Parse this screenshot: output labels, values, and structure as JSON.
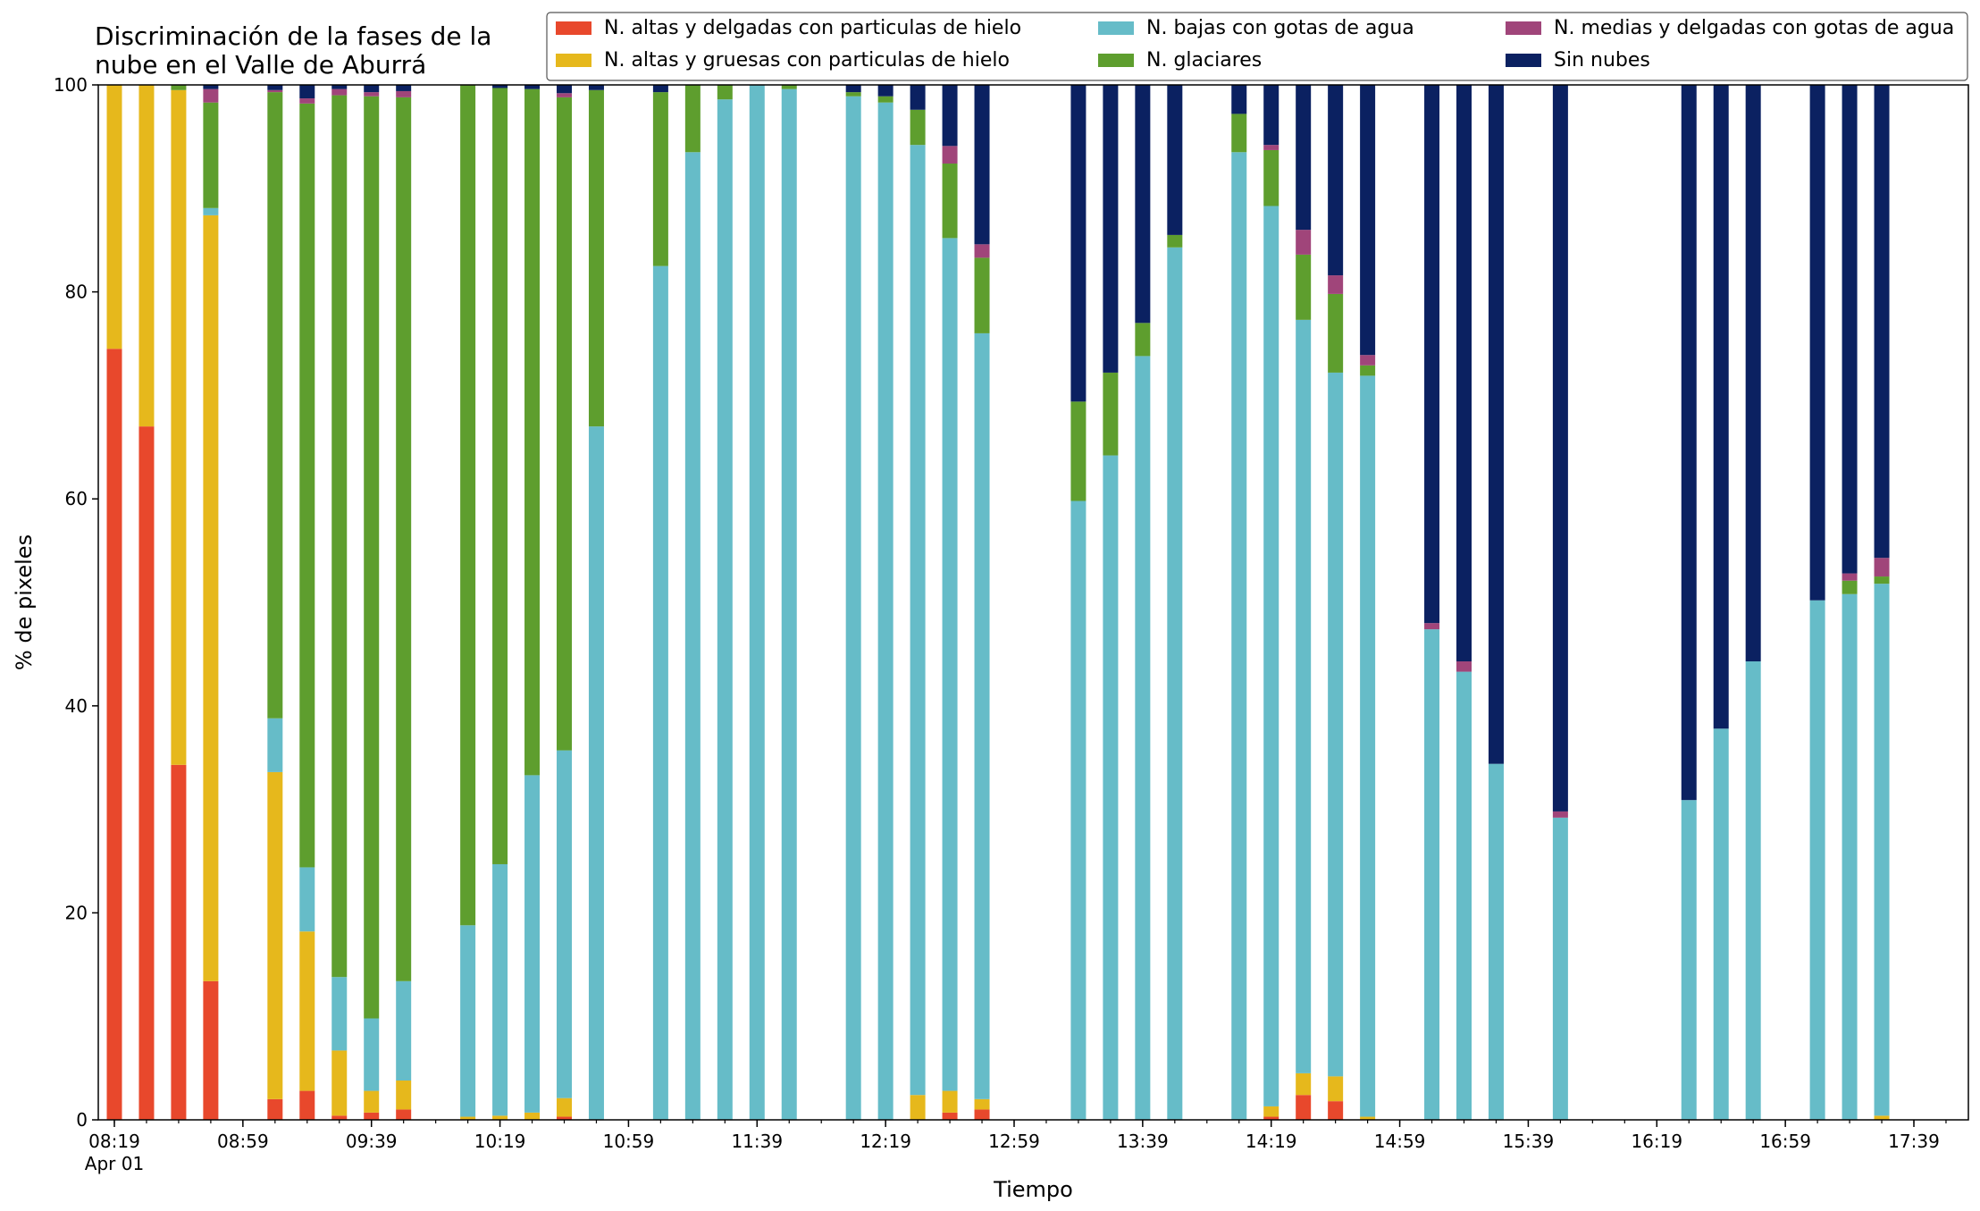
{
  "chart_data": {
    "type": "bar",
    "stacked": true,
    "title": "Discriminación de la fases de la\nnube en el Valle de Aburrá",
    "xlabel": "Tiempo",
    "ylabel": "% de pixeles",
    "ylim": [
      0,
      100
    ],
    "yticks": [
      0,
      20,
      40,
      60,
      80,
      100
    ],
    "xlim_slots": [
      0,
      58
    ],
    "xticks": [
      {
        "slot": 0,
        "label": "08:19",
        "sublabel": "Apr 01"
      },
      {
        "slot": 4,
        "label": "08:59"
      },
      {
        "slot": 8,
        "label": "09:39"
      },
      {
        "slot": 12,
        "label": "10:19"
      },
      {
        "slot": 16,
        "label": "10:59"
      },
      {
        "slot": 20,
        "label": "11:39"
      },
      {
        "slot": 24,
        "label": "12:19"
      },
      {
        "slot": 28,
        "label": "12:59"
      },
      {
        "slot": 32,
        "label": "13:39"
      },
      {
        "slot": 36,
        "label": "14:19"
      },
      {
        "slot": 40,
        "label": "14:59"
      },
      {
        "slot": 44,
        "label": "15:39"
      },
      {
        "slot": 48,
        "label": "16:19"
      },
      {
        "slot": 52,
        "label": "16:59"
      },
      {
        "slot": 56,
        "label": "17:39"
      }
    ],
    "grid": false,
    "legend_position": "top-right",
    "series": [
      {
        "key": "altas_delgadas",
        "name": "N. altas y delgadas con particulas de hielo",
        "color": "#e8482c"
      },
      {
        "key": "altas_gruesas",
        "name": "N. altas y gruesas con particulas de hielo",
        "color": "#e6b81c"
      },
      {
        "key": "bajas_agua",
        "name": "N. bajas con gotas de agua",
        "color": "#66bcc8"
      },
      {
        "key": "glaciares",
        "name": "N. glaciares",
        "color": "#5e9e2e"
      },
      {
        "key": "medias_agua",
        "name": "N. medias y delgadas con gotas de agua",
        "color": "#a0457a"
      },
      {
        "key": "sin_nubes",
        "name": "Sin nubes",
        "color": "#0b2161"
      }
    ],
    "legend_order": [
      "altas_delgadas",
      "altas_gruesas",
      "bajas_agua",
      "glaciares",
      "medias_agua",
      "sin_nubes"
    ],
    "bars": [
      {
        "slot": 0,
        "values": [
          74.5,
          25.5,
          0,
          0,
          0,
          0
        ]
      },
      {
        "slot": 1,
        "values": [
          67,
          33,
          0,
          0,
          0,
          0
        ]
      },
      {
        "slot": 2,
        "values": [
          34.3,
          65.2,
          0,
          0.5,
          0,
          0
        ]
      },
      {
        "slot": 3,
        "values": [
          13.4,
          74,
          0.7,
          10.2,
          1.3,
          0.4
        ]
      },
      {
        "slot": 5,
        "values": [
          2,
          31.6,
          5.2,
          60.5,
          0.2,
          0.5
        ]
      },
      {
        "slot": 6,
        "values": [
          2.8,
          15.4,
          6.2,
          73.8,
          0.5,
          1.3
        ]
      },
      {
        "slot": 7,
        "values": [
          0.4,
          6.3,
          7.1,
          85.2,
          0.6,
          0.4
        ]
      },
      {
        "slot": 8,
        "values": [
          0.7,
          2.1,
          7,
          89.1,
          0.4,
          0.7
        ]
      },
      {
        "slot": 9,
        "values": [
          1,
          2.8,
          9.6,
          85.4,
          0.6,
          0.6
        ]
      },
      {
        "slot": 11,
        "values": [
          0,
          0.3,
          18.5,
          81.2,
          0,
          0
        ]
      },
      {
        "slot": 12,
        "values": [
          0,
          0.4,
          24.3,
          75,
          0,
          0.3
        ]
      },
      {
        "slot": 13,
        "values": [
          0,
          0.7,
          32.6,
          66.3,
          0,
          0.4
        ]
      },
      {
        "slot": 14,
        "values": [
          0.3,
          1.8,
          33.6,
          63.1,
          0.4,
          0.8
        ]
      },
      {
        "slot": 15,
        "values": [
          0,
          0,
          67,
          32.5,
          0,
          0.5
        ]
      },
      {
        "slot": 17,
        "values": [
          0,
          0,
          82.5,
          16.8,
          0,
          0.7
        ]
      },
      {
        "slot": 18,
        "values": [
          0,
          0,
          93.5,
          6.5,
          0,
          0
        ]
      },
      {
        "slot": 19,
        "values": [
          0,
          0,
          98.6,
          1.4,
          0,
          0
        ]
      },
      {
        "slot": 20,
        "values": [
          0,
          0,
          100,
          0,
          0,
          0
        ]
      },
      {
        "slot": 21,
        "values": [
          0,
          0,
          99.6,
          0.4,
          0,
          0
        ]
      },
      {
        "slot": 23,
        "values": [
          0,
          0,
          98.9,
          0.4,
          0,
          0.7
        ]
      },
      {
        "slot": 24,
        "values": [
          0,
          0,
          98.3,
          0.6,
          0,
          1.1
        ]
      },
      {
        "slot": 25,
        "values": [
          0,
          2.4,
          91.8,
          3.4,
          0,
          2.4
        ]
      },
      {
        "slot": 26,
        "values": [
          0.7,
          2.1,
          82.4,
          7.2,
          1.7,
          5.9
        ]
      },
      {
        "slot": 27,
        "values": [
          1,
          1,
          74,
          7.3,
          1.3,
          15.4
        ]
      },
      {
        "slot": 30,
        "values": [
          0,
          0,
          59.8,
          9.6,
          0,
          30.6
        ]
      },
      {
        "slot": 31,
        "values": [
          0,
          0,
          64.2,
          8,
          0,
          27.8
        ]
      },
      {
        "slot": 32,
        "values": [
          0,
          0,
          73.8,
          3.2,
          0,
          23
        ]
      },
      {
        "slot": 33,
        "values": [
          0,
          0,
          84.3,
          1.2,
          0,
          14.5
        ]
      },
      {
        "slot": 35,
        "values": [
          0,
          0,
          93.5,
          3.7,
          0,
          2.8
        ]
      },
      {
        "slot": 36,
        "values": [
          0.3,
          1,
          87,
          5.4,
          0.5,
          5.8
        ]
      },
      {
        "slot": 37,
        "values": [
          2.4,
          2.1,
          72.8,
          6.3,
          2.4,
          14
        ]
      },
      {
        "slot": 38,
        "values": [
          1.8,
          2.4,
          68,
          7.6,
          1.8,
          18.4
        ]
      },
      {
        "slot": 39,
        "values": [
          0,
          0.3,
          71.6,
          1,
          1,
          26.1
        ]
      },
      {
        "slot": 41,
        "values": [
          0,
          0,
          47.4,
          0,
          0.6,
          52
        ]
      },
      {
        "slot": 42,
        "values": [
          0,
          0,
          43.3,
          0,
          1,
          55.7
        ]
      },
      {
        "slot": 43,
        "values": [
          0,
          0,
          34.4,
          0,
          0,
          65.6
        ]
      },
      {
        "slot": 45,
        "values": [
          0,
          0,
          29.2,
          0,
          0.6,
          70.2
        ]
      },
      {
        "slot": 49,
        "values": [
          0,
          0,
          30.9,
          0,
          0,
          69.1
        ]
      },
      {
        "slot": 50,
        "values": [
          0,
          0,
          37.8,
          0,
          0,
          62.2
        ]
      },
      {
        "slot": 51,
        "values": [
          0,
          0,
          44.3,
          0,
          0,
          55.7
        ]
      },
      {
        "slot": 53,
        "values": [
          0,
          0,
          50.2,
          0,
          0,
          49.8
        ]
      },
      {
        "slot": 54,
        "values": [
          0,
          0,
          50.8,
          1.3,
          0.7,
          47.2
        ]
      },
      {
        "slot": 55,
        "values": [
          0,
          0.4,
          51.4,
          0.7,
          1.8,
          45.7
        ]
      }
    ]
  }
}
